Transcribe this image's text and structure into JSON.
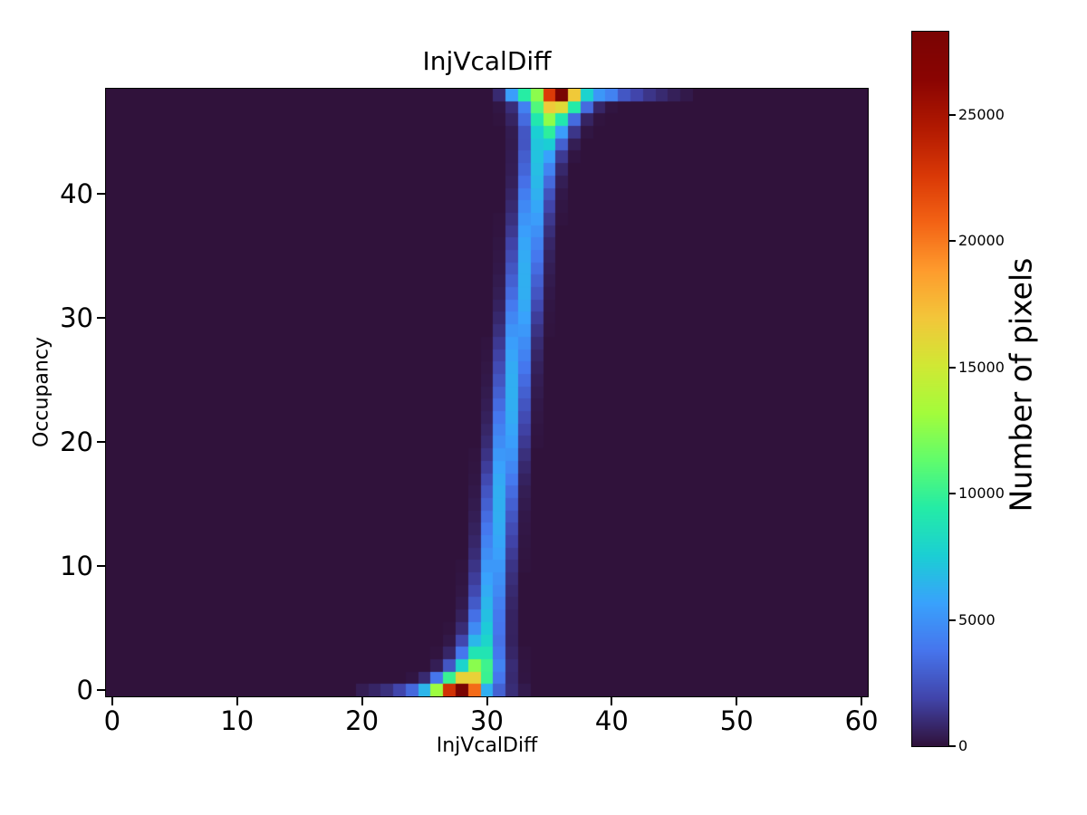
{
  "chart_data": {
    "type": "heatmap",
    "title": "InjVcalDiff",
    "xlabel": "InjVcalDiff",
    "ylabel": "Occupancy",
    "colorbar_label": "Number of pixels",
    "x_bins": {
      "min": 0,
      "max": 60,
      "count": 61
    },
    "y_bins": {
      "min": 0,
      "max": 48,
      "count": 49
    },
    "x_ticks": [
      0,
      10,
      20,
      30,
      40,
      50,
      60
    ],
    "y_ticks": [
      0,
      10,
      20,
      30,
      40
    ],
    "colorbar_ticks": [
      0,
      5000,
      10000,
      15000,
      20000,
      25000
    ],
    "vmin": 0,
    "vmax": 28300,
    "colormap": "turbo",
    "colormap_stops": [
      "#30123b",
      "#4145ab",
      "#4675ed",
      "#39a2fc",
      "#1bcfd4",
      "#24eca6",
      "#61fc6c",
      "#a4fc3b",
      "#d1e834",
      "#f3c63a",
      "#fe9b2d",
      "#f36315",
      "#d93806",
      "#b11901",
      "#8a0402",
      "#7a0403"
    ],
    "background_value_color": "#30123b",
    "row0_counts": {
      "20": 400,
      "21": 700,
      "22": 1100,
      "23": 1900,
      "24": 3300,
      "25": 6500,
      "26": 13000,
      "27": 23000,
      "28": 28300,
      "29": 20500,
      "30": 6200,
      "31": 3000,
      "32": 1000,
      "33": 300
    },
    "row48_counts": {
      "31": 900,
      "32": 5500,
      "33": 9500,
      "34": 12500,
      "35": 22500,
      "36": 28300,
      "37": 16800,
      "38": 7800,
      "39": 5200,
      "40": 4300,
      "41": 2600,
      "42": 1900,
      "43": 1300,
      "44": 900,
      "45": 500,
      "46": 250
    },
    "scurve_band": {
      "mu_anchors": [
        [
          1,
          28.5
        ],
        [
          2,
          29.2
        ],
        [
          3,
          29.5
        ],
        [
          5,
          29.9
        ],
        [
          8,
          30.3
        ],
        [
          12,
          30.7
        ],
        [
          16,
          31.1
        ],
        [
          20,
          31.6
        ],
        [
          24,
          32.0
        ],
        [
          28,
          32.4
        ],
        [
          32,
          32.9
        ],
        [
          36,
          33.3
        ],
        [
          40,
          33.8
        ],
        [
          43,
          34.3
        ],
        [
          45,
          34.8
        ],
        [
          46,
          35.0
        ],
        [
          47,
          35.4
        ]
      ],
      "amp_base": 6200,
      "amp_edge": 14800,
      "amp_tau": 1.8,
      "width_base": 0.82,
      "width_edge": 0.75,
      "width_tau": 2.5,
      "zero_suppress_below": 60
    }
  }
}
